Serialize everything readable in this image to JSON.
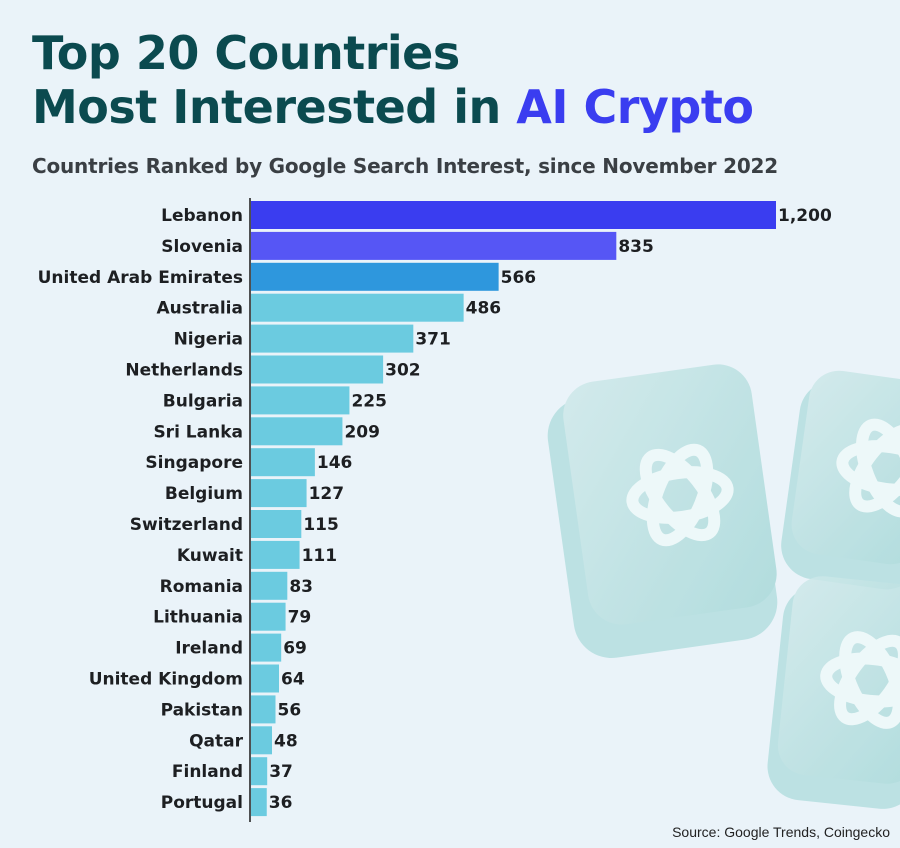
{
  "header": {
    "title_line1": "Top 20 Countries",
    "title_line2_prefix": "Most Interested in ",
    "title_line2_accent": "AI Crypto",
    "subtitle": "Countries Ranked by Google Search Interest, since November 2022"
  },
  "footer": {
    "source": "Source: Google Trends, Coingecko"
  },
  "colors": {
    "title": "#0b4a4f",
    "accent": "#3a3df0",
    "bar_rank1": "#3a3df0",
    "bar_rank2": "#5656f5",
    "bar_rank3": "#2e97dd",
    "bar_default": "#6bcbe0",
    "background": "#eaf3f9"
  },
  "chart_data": {
    "type": "bar",
    "orientation": "horizontal",
    "categories": [
      "Lebanon",
      "Slovenia",
      "United Arab Emirates",
      "Australia",
      "Nigeria",
      "Netherlands",
      "Bulgaria",
      "Sri Lanka",
      "Singapore",
      "Belgium",
      "Switzerland",
      "Kuwait",
      "Romania",
      "Lithuania",
      "Ireland",
      "United Kingdom",
      "Pakistan",
      "Qatar",
      "Finland",
      "Portugal"
    ],
    "values": [
      1200,
      835,
      566,
      486,
      371,
      302,
      225,
      209,
      146,
      127,
      115,
      111,
      83,
      79,
      69,
      64,
      56,
      48,
      37,
      36
    ],
    "value_labels": [
      "1,200",
      "835",
      "566",
      "486",
      "371",
      "302",
      "225",
      "209",
      "146",
      "127",
      "115",
      "111",
      "83",
      "79",
      "69",
      "64",
      "56",
      "48",
      "37",
      "36"
    ],
    "xlim": [
      0,
      1200
    ],
    "grid": false,
    "legend": "none"
  }
}
